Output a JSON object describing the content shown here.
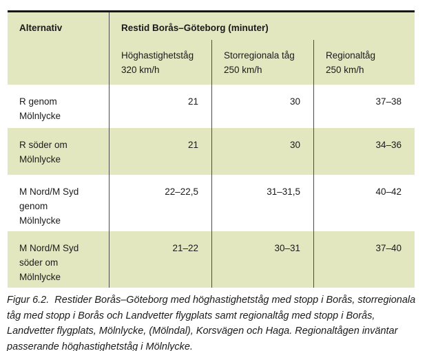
{
  "table": {
    "col1_header": "Alternativ",
    "group_header": "Restid Borås–Göteborg (minuter)",
    "sub_headers": [
      "Höghastighetståg\n320 km/h",
      "Storregionala tåg\n250 km/h",
      "Regionaltåg\n250 km/h"
    ],
    "rows": [
      {
        "label": "R genom\nMölnlycke",
        "values": [
          "21",
          "30",
          "37–38"
        ]
      },
      {
        "label": "R söder om\nMölnlycke",
        "values": [
          "21",
          "30",
          "34–36"
        ]
      },
      {
        "label": "M Nord/M Syd\ngenom\nMölnlycke",
        "values": [
          "22–22,5",
          "31–31,5",
          "40–42"
        ]
      },
      {
        "label": "M Nord/M Syd\nsöder om\nMölnlycke",
        "values": [
          "21–22",
          "30–31",
          "37–40"
        ]
      }
    ]
  },
  "caption": "Figur 6.2.  Restider Borås–Göteborg med höghastighetståg med stopp i Borås, storregionala\ntåg med stopp i Borås och Landvetter flygplats samt regionaltåg med stopp i Borås,\nLandvetter flygplats, Mölnlycke, (Mölndal), Korsvägen och Haga. Regionaltågen inväntar\npasserande höghastighetståg i Mölnlycke.",
  "colors": {
    "row_green": "#e3e7c0",
    "top_border": "#151515",
    "grid_line": "#4a4a4a",
    "text": "#1a1a1a"
  },
  "chart_data": {
    "type": "table",
    "title": "Restid Borås–Göteborg (minuter)",
    "row_header": "Alternativ",
    "columns": [
      "Höghastighetståg 320 km/h",
      "Storregionala tåg 250 km/h",
      "Regionaltåg 250 km/h"
    ],
    "rows": [
      {
        "alternativ": "R genom Mölnlycke",
        "hoghastighetstag": "21",
        "storregionala": "30",
        "regionaltag": "37–38"
      },
      {
        "alternativ": "R söder om Mölnlycke",
        "hoghastighetstag": "21",
        "storregionala": "30",
        "regionaltag": "34–36"
      },
      {
        "alternativ": "M Nord/M Syd genom Mölnlycke",
        "hoghastighetstag": "22–22,5",
        "storregionala": "31–31,5",
        "regionaltag": "40–42"
      },
      {
        "alternativ": "M Nord/M Syd söder om Mölnlycke",
        "hoghastighetstag": "21–22",
        "storregionala": "30–31",
        "regionaltag": "37–40"
      }
    ]
  }
}
